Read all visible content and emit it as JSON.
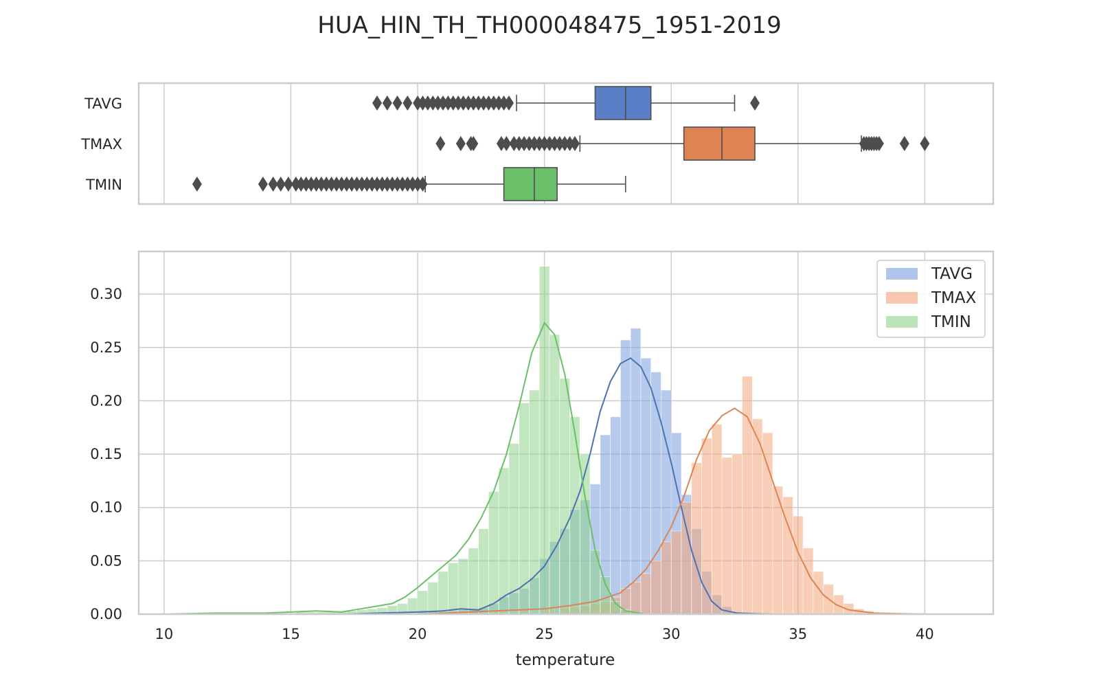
{
  "chart_data": [
    {
      "type": "box",
      "title": "HUA_HIN_TH_TH000048475_1951-2019",
      "categories": [
        "TAVG",
        "TMAX",
        "TMIN"
      ],
      "xlim": [
        9,
        42.7
      ],
      "xticks": [
        10,
        15,
        20,
        25,
        30,
        35,
        40
      ],
      "grid": true,
      "boxes": [
        {
          "name": "TAVG",
          "color": "#5a7fc6",
          "whisker_low": 23.9,
          "q1": 27.0,
          "median": 28.2,
          "q3": 29.2,
          "whisker_high": 32.5,
          "outliers": [
            18.4,
            18.8,
            19.2,
            19.6,
            20.0,
            20.2,
            20.4,
            20.6,
            20.8,
            21.0,
            21.2,
            21.4,
            21.6,
            21.8,
            22.0,
            22.2,
            22.4,
            22.6,
            22.8,
            23.0,
            23.2,
            23.4,
            23.6,
            33.3
          ]
        },
        {
          "name": "TMAX",
          "color": "#dd8452",
          "whisker_low": 26.4,
          "q1": 30.5,
          "median": 32.0,
          "q3": 33.3,
          "whisker_high": 37.5,
          "outliers": [
            20.9,
            21.7,
            22.1,
            22.2,
            23.3,
            23.5,
            23.8,
            24.0,
            24.2,
            24.4,
            24.6,
            24.8,
            25.0,
            25.2,
            25.4,
            25.6,
            25.8,
            26.0,
            26.2,
            37.6,
            37.7,
            37.8,
            37.9,
            38.0,
            38.1,
            38.2,
            39.2,
            40.0
          ]
        },
        {
          "name": "TMIN",
          "color": "#6abf69",
          "whisker_low": 20.3,
          "q1": 23.4,
          "median": 24.6,
          "q3": 25.5,
          "whisker_high": 28.2,
          "outliers": [
            11.3,
            13.9,
            14.3,
            14.6,
            14.9,
            15.2,
            15.4,
            15.6,
            15.8,
            16.0,
            16.2,
            16.4,
            16.6,
            16.8,
            17.0,
            17.2,
            17.4,
            17.6,
            17.8,
            18.0,
            18.2,
            18.4,
            18.6,
            18.8,
            19.0,
            19.2,
            19.4,
            19.6,
            19.8,
            20.0,
            20.2
          ]
        }
      ]
    },
    {
      "type": "histogram",
      "xlabel": "temperature",
      "ylabel": "",
      "xlim": [
        9,
        42.7
      ],
      "ylim": [
        0,
        0.34
      ],
      "xticks": [
        10,
        15,
        20,
        25,
        30,
        35,
        40
      ],
      "yticks": [
        "0.00",
        "0.05",
        "0.10",
        "0.15",
        "0.20",
        "0.25",
        "0.30"
      ],
      "grid": true,
      "legend_position": "top-right",
      "series": [
        {
          "name": "TAVG",
          "color": "#7a9ee0",
          "line_color": "#4c72b0",
          "bins": [
            [
              20.0,
              0.002
            ],
            [
              20.4,
              0.002
            ],
            [
              20.8,
              0.002
            ],
            [
              21.2,
              0.003
            ],
            [
              21.6,
              0.004
            ],
            [
              22.0,
              0.004
            ],
            [
              22.4,
              0.006
            ],
            [
              22.8,
              0.01
            ],
            [
              23.2,
              0.016
            ],
            [
              23.6,
              0.02
            ],
            [
              24.0,
              0.024
            ],
            [
              24.4,
              0.034
            ],
            [
              24.8,
              0.052
            ],
            [
              25.2,
              0.068
            ],
            [
              25.6,
              0.08
            ],
            [
              26.0,
              0.098
            ],
            [
              26.4,
              0.107
            ],
            [
              26.8,
              0.122
            ],
            [
              27.2,
              0.168
            ],
            [
              27.6,
              0.185
            ],
            [
              28.0,
              0.257
            ],
            [
              28.4,
              0.268
            ],
            [
              28.8,
              0.24
            ],
            [
              29.2,
              0.227
            ],
            [
              29.6,
              0.21
            ],
            [
              30.0,
              0.17
            ],
            [
              30.4,
              0.112
            ],
            [
              30.8,
              0.08
            ],
            [
              31.2,
              0.04
            ],
            [
              31.6,
              0.018
            ],
            [
              32.0,
              0.007
            ],
            [
              32.4,
              0.002
            ]
          ],
          "kde": [
            [
              17,
              0.0
            ],
            [
              18.5,
              0.001
            ],
            [
              20,
              0.002
            ],
            [
              21,
              0.003
            ],
            [
              21.7,
              0.005
            ],
            [
              22.4,
              0.004
            ],
            [
              23,
              0.01
            ],
            [
              23.5,
              0.018
            ],
            [
              24,
              0.024
            ],
            [
              24.5,
              0.033
            ],
            [
              25,
              0.045
            ],
            [
              25.5,
              0.065
            ],
            [
              26,
              0.09
            ],
            [
              26.4,
              0.115
            ],
            [
              26.8,
              0.15
            ],
            [
              27.2,
              0.19
            ],
            [
              27.6,
              0.218
            ],
            [
              28.0,
              0.235
            ],
            [
              28.4,
              0.24
            ],
            [
              28.8,
              0.232
            ],
            [
              29.2,
              0.212
            ],
            [
              29.6,
              0.18
            ],
            [
              30.0,
              0.142
            ],
            [
              30.4,
              0.1
            ],
            [
              30.8,
              0.06
            ],
            [
              31.2,
              0.03
            ],
            [
              31.6,
              0.012
            ],
            [
              32.0,
              0.004
            ],
            [
              32.6,
              0.001
            ],
            [
              34,
              0.0
            ]
          ]
        },
        {
          "name": "TMAX",
          "color": "#f4a57a",
          "line_color": "#dd8452",
          "bins": [
            [
              21.0,
              0.002
            ],
            [
              22.0,
              0.002
            ],
            [
              23.0,
              0.003
            ],
            [
              24.0,
              0.004
            ],
            [
              25.0,
              0.005
            ],
            [
              25.6,
              0.006
            ],
            [
              26.0,
              0.007
            ],
            [
              26.4,
              0.008
            ],
            [
              26.8,
              0.01
            ],
            [
              27.2,
              0.012
            ],
            [
              27.6,
              0.016
            ],
            [
              28.0,
              0.024
            ],
            [
              28.4,
              0.03
            ],
            [
              28.8,
              0.038
            ],
            [
              29.2,
              0.05
            ],
            [
              29.6,
              0.068
            ],
            [
              30.0,
              0.078
            ],
            [
              30.4,
              0.105
            ],
            [
              30.8,
              0.142
            ],
            [
              31.2,
              0.165
            ],
            [
              31.6,
              0.178
            ],
            [
              32.0,
              0.147
            ],
            [
              32.4,
              0.15
            ],
            [
              32.8,
              0.223
            ],
            [
              33.2,
              0.183
            ],
            [
              33.6,
              0.17
            ],
            [
              34.0,
              0.12
            ],
            [
              34.4,
              0.11
            ],
            [
              34.8,
              0.092
            ],
            [
              35.2,
              0.062
            ],
            [
              35.6,
              0.04
            ],
            [
              36.0,
              0.028
            ],
            [
              36.4,
              0.018
            ],
            [
              36.8,
              0.01
            ],
            [
              37.2,
              0.005
            ],
            [
              37.6,
              0.003
            ],
            [
              38.0,
              0.001
            ]
          ],
          "kde": [
            [
              20,
              0.0
            ],
            [
              22,
              0.002
            ],
            [
              24,
              0.004
            ],
            [
              25,
              0.005
            ],
            [
              26,
              0.008
            ],
            [
              27,
              0.012
            ],
            [
              28,
              0.02
            ],
            [
              28.5,
              0.03
            ],
            [
              29,
              0.042
            ],
            [
              29.5,
              0.06
            ],
            [
              30,
              0.082
            ],
            [
              30.5,
              0.11
            ],
            [
              31,
              0.145
            ],
            [
              31.5,
              0.172
            ],
            [
              32.0,
              0.186
            ],
            [
              32.5,
              0.193
            ],
            [
              33.0,
              0.185
            ],
            [
              33.5,
              0.16
            ],
            [
              34.0,
              0.125
            ],
            [
              34.5,
              0.09
            ],
            [
              35.0,
              0.058
            ],
            [
              35.5,
              0.034
            ],
            [
              36.0,
              0.018
            ],
            [
              36.5,
              0.009
            ],
            [
              37.0,
              0.004
            ],
            [
              38.0,
              0.001
            ],
            [
              40.0,
              0.0
            ]
          ]
        },
        {
          "name": "TMIN",
          "color": "#8fd18a",
          "line_color": "#6abf69",
          "bins": [
            [
              14.8,
              0.001
            ],
            [
              15.2,
              0.002
            ],
            [
              15.6,
              0.002
            ],
            [
              16.0,
              0.002
            ],
            [
              16.4,
              0.002
            ],
            [
              16.8,
              0.002
            ],
            [
              17.2,
              0.003
            ],
            [
              17.6,
              0.004
            ],
            [
              18.0,
              0.005
            ],
            [
              18.4,
              0.006
            ],
            [
              18.8,
              0.008
            ],
            [
              19.2,
              0.01
            ],
            [
              19.6,
              0.015
            ],
            [
              20.0,
              0.022
            ],
            [
              20.4,
              0.03
            ],
            [
              20.8,
              0.04
            ],
            [
              21.2,
              0.048
            ],
            [
              21.6,
              0.052
            ],
            [
              22.0,
              0.062
            ],
            [
              22.4,
              0.08
            ],
            [
              22.8,
              0.115
            ],
            [
              23.2,
              0.137
            ],
            [
              23.6,
              0.16
            ],
            [
              24.0,
              0.198
            ],
            [
              24.4,
              0.21
            ],
            [
              24.8,
              0.326
            ],
            [
              25.2,
              0.262
            ],
            [
              25.6,
              0.221
            ],
            [
              26.0,
              0.185
            ],
            [
              26.4,
              0.15
            ],
            [
              26.8,
              0.06
            ],
            [
              27.2,
              0.035
            ],
            [
              27.6,
              0.012
            ],
            [
              28.0,
              0.004
            ]
          ],
          "kde": [
            [
              10,
              0.0
            ],
            [
              12,
              0.001
            ],
            [
              14,
              0.001
            ],
            [
              15,
              0.002
            ],
            [
              16,
              0.003
            ],
            [
              17,
              0.002
            ],
            [
              17.5,
              0.004
            ],
            [
              18,
              0.006
            ],
            [
              18.5,
              0.008
            ],
            [
              19,
              0.01
            ],
            [
              19.5,
              0.016
            ],
            [
              20,
              0.025
            ],
            [
              20.5,
              0.035
            ],
            [
              21,
              0.045
            ],
            [
              21.5,
              0.055
            ],
            [
              22,
              0.07
            ],
            [
              22.5,
              0.09
            ],
            [
              23,
              0.115
            ],
            [
              23.5,
              0.15
            ],
            [
              24,
              0.195
            ],
            [
              24.5,
              0.245
            ],
            [
              25.0,
              0.273
            ],
            [
              25.4,
              0.262
            ],
            [
              25.8,
              0.225
            ],
            [
              26.2,
              0.17
            ],
            [
              26.6,
              0.11
            ],
            [
              27.0,
              0.06
            ],
            [
              27.4,
              0.028
            ],
            [
              27.8,
              0.01
            ],
            [
              28.2,
              0.003
            ],
            [
              29,
              0.0
            ]
          ]
        }
      ]
    }
  ]
}
